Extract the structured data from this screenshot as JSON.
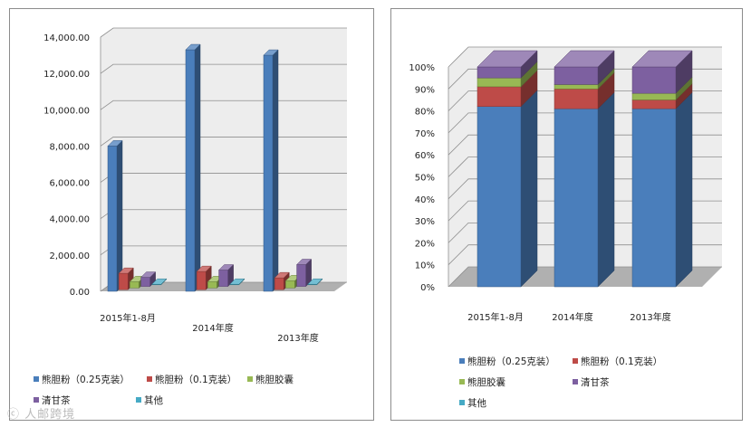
{
  "colors": {
    "series": [
      "#4a7ebb",
      "#be4b48",
      "#98b954",
      "#7d60a0",
      "#46aac5"
    ],
    "grid": "#8f8f8f",
    "wall": "#ededed",
    "floor": "#b0b0b0"
  },
  "chart_data": [
    {
      "type": "bar",
      "categories": [
        "2015年1-8月",
        "2014年度",
        "2013年度"
      ],
      "series": [
        {
          "name": "熊胆粉（0.25克装）",
          "values": [
            8000,
            13300,
            13000
          ]
        },
        {
          "name": "熊胆粉（0.1克装）",
          "values": [
            900,
            1000,
            650
          ]
        },
        {
          "name": "熊胆胶囊",
          "values": [
            350,
            350,
            400
          ]
        },
        {
          "name": "清甘茶",
          "values": [
            500,
            900,
            1200
          ]
        },
        {
          "name": "其他",
          "values": [
            30,
            30,
            30
          ]
        }
      ],
      "yticks": [
        "0.00",
        "2,000.00",
        "4,000.00",
        "6,000.00",
        "8,000.00",
        "10,000.00",
        "12,000.00",
        "14,000.00"
      ],
      "ylim": [
        0,
        14000
      ],
      "grid": true,
      "legend_position": "bottom"
    },
    {
      "type": "bar",
      "stacked": "percent",
      "categories": [
        "2015年1-8月",
        "2014年度",
        "2013年度"
      ],
      "series": [
        {
          "name": "熊胆粉（0.25克装）",
          "values": [
            82,
            81,
            81
          ]
        },
        {
          "name": "熊胆粉（0.1克装）",
          "values": [
            9,
            9,
            4
          ]
        },
        {
          "name": "熊胆胶囊",
          "values": [
            4,
            2,
            3
          ]
        },
        {
          "name": "清甘茶",
          "values": [
            5,
            8,
            12
          ]
        },
        {
          "name": "其他",
          "values": [
            0,
            0,
            0
          ]
        }
      ],
      "yticks": [
        "0%",
        "10%",
        "20%",
        "30%",
        "40%",
        "50%",
        "60%",
        "70%",
        "80%",
        "90%",
        "100%"
      ],
      "ylim": [
        0,
        100
      ],
      "grid": true,
      "legend_position": "bottom"
    }
  ],
  "watermark": "ⓒ 人邮跨境"
}
